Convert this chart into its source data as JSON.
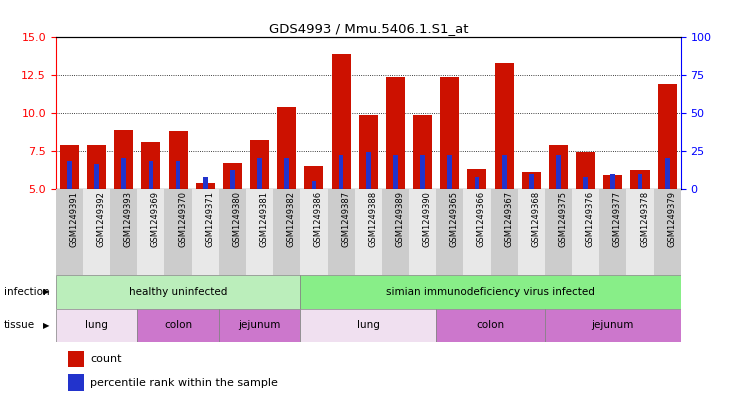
{
  "title": "GDS4993 / Mmu.5406.1.S1_at",
  "samples": [
    "GSM1249391",
    "GSM1249392",
    "GSM1249393",
    "GSM1249369",
    "GSM1249370",
    "GSM1249371",
    "GSM1249380",
    "GSM1249381",
    "GSM1249382",
    "GSM1249386",
    "GSM1249387",
    "GSM1249388",
    "GSM1249389",
    "GSM1249390",
    "GSM1249365",
    "GSM1249366",
    "GSM1249367",
    "GSM1249368",
    "GSM1249375",
    "GSM1249376",
    "GSM1249377",
    "GSM1249378",
    "GSM1249379"
  ],
  "counts": [
    7.9,
    7.9,
    8.9,
    8.1,
    8.8,
    5.4,
    6.7,
    8.2,
    10.4,
    6.5,
    13.9,
    9.9,
    12.4,
    9.9,
    12.4,
    6.3,
    13.3,
    6.1,
    7.9,
    7.4,
    5.9,
    6.2,
    11.9
  ],
  "percentiles": [
    18,
    16,
    20,
    18,
    18,
    8,
    12,
    20,
    20,
    5,
    22,
    24,
    22,
    22,
    22,
    8,
    22,
    10,
    22,
    8,
    10,
    10,
    20
  ],
  "ylim_left": [
    5,
    15
  ],
  "ylim_right": [
    0,
    100
  ],
  "yticks_left": [
    5,
    7.5,
    10,
    12.5,
    15
  ],
  "yticks_right": [
    0,
    25,
    50,
    75,
    100
  ],
  "bar_color": "#CC1100",
  "percentile_color": "#2233CC",
  "infection_groups": [
    {
      "label": "healthy uninfected",
      "start": 0,
      "end": 8,
      "color": "#BBEEBB"
    },
    {
      "label": "simian immunodeficiency virus infected",
      "start": 9,
      "end": 22,
      "color": "#88EE88"
    }
  ],
  "tissue_group_defs": [
    {
      "label": "lung",
      "start": 0,
      "end": 2,
      "color": "#F0E0F0"
    },
    {
      "label": "colon",
      "start": 3,
      "end": 5,
      "color": "#CC77CC"
    },
    {
      "label": "jejunum",
      "start": 6,
      "end": 8,
      "color": "#CC77CC"
    },
    {
      "label": "lung",
      "start": 9,
      "end": 13,
      "color": "#F0E0F0"
    },
    {
      "label": "colon",
      "start": 14,
      "end": 17,
      "color": "#CC77CC"
    },
    {
      "label": "jejunum",
      "start": 18,
      "end": 22,
      "color": "#CC77CC"
    }
  ],
  "infection_label": "infection",
  "tissue_label": "tissue",
  "legend_count": "count",
  "legend_percentile": "percentile rank within the sample",
  "col_bg_dark": "#CCCCCC",
  "col_bg_light": "#E8E8E8"
}
